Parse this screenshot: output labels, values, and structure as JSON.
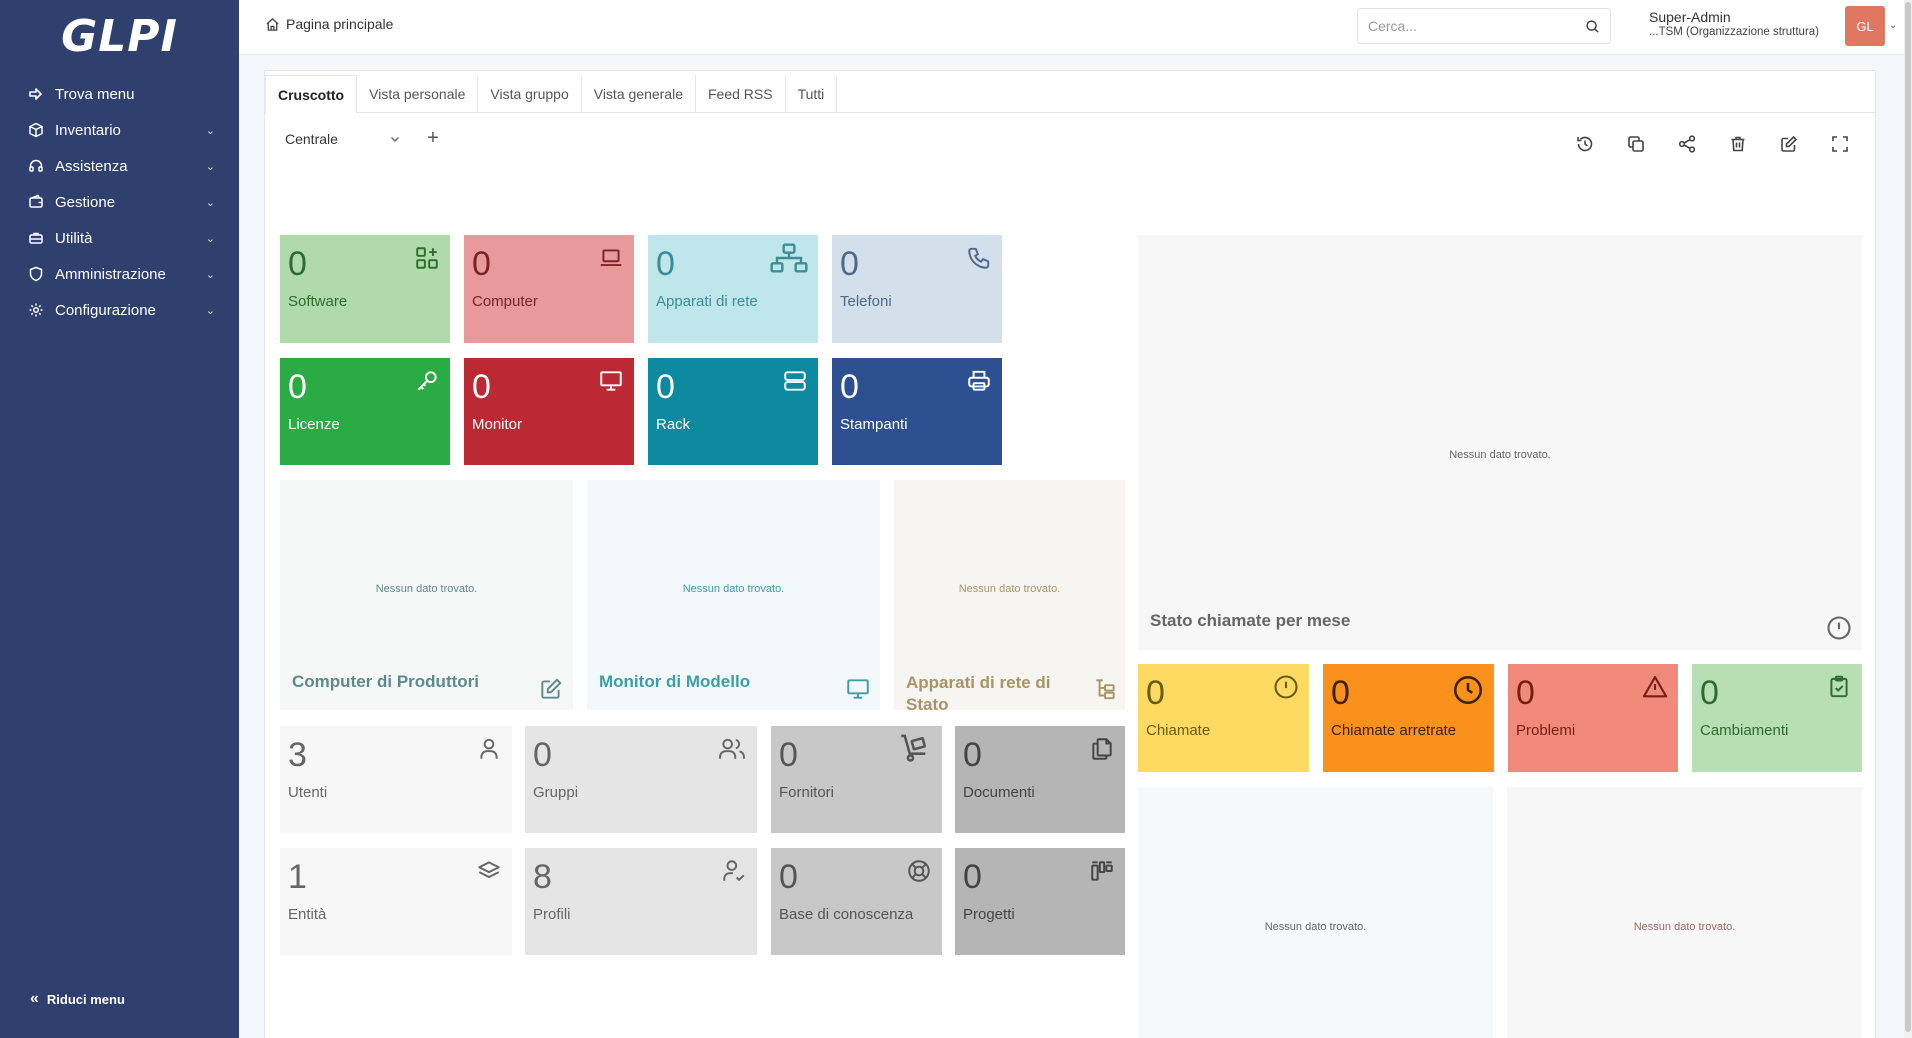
{
  "sidebar": {
    "logo": "GLPI",
    "items": [
      {
        "label": "Trova menu",
        "icon": "arrow-right-icon",
        "chevron": ""
      },
      {
        "label": "Inventario",
        "icon": "cube-icon",
        "chevron": "⌄"
      },
      {
        "label": "Assistenza",
        "icon": "headset-icon",
        "chevron": "⌄"
      },
      {
        "label": "Gestione",
        "icon": "wallet-icon",
        "chevron": "⌄"
      },
      {
        "label": "Utilità",
        "icon": "briefcase-icon",
        "chevron": "⌄"
      },
      {
        "label": "Amministrazione",
        "icon": "shield-icon",
        "chevron": "⌄"
      },
      {
        "label": "Configurazione",
        "icon": "gear-icon",
        "chevron": "⌄"
      }
    ],
    "collapse_label": "Riduci menu"
  },
  "header": {
    "breadcrumb": "Pagina principale",
    "search_placeholder": "Cerca...",
    "user_name": "Super-Admin",
    "user_entity": "...TSM (Organizzazione struttura)",
    "avatar_initials": "GL"
  },
  "tabs": [
    "Cruscotto",
    "Vista personale",
    "Vista gruppo",
    "Vista generale",
    "Feed RSS",
    "Tutti"
  ],
  "dashboard": {
    "selected": "Centrale",
    "add_symbol": "+",
    "tools": [
      "history-icon",
      "duplicate-icon",
      "share-icon",
      "trash-icon",
      "edit-icon",
      "fullscreen-icon"
    ]
  },
  "tiles": {
    "software": {
      "num": "0",
      "label": "Software",
      "bg": "#aedba8",
      "fg": "#2e6b30",
      "icon": "apps-add-icon"
    },
    "computer": {
      "num": "0",
      "label": "Computer",
      "bg": "#e89a9a",
      "fg": "#7a2424",
      "icon": "laptop-icon"
    },
    "network": {
      "num": "0",
      "label": "Apparati di rete",
      "bg": "#bfe6ea",
      "fg": "#3a8d99",
      "icon": "network-icon"
    },
    "phones": {
      "num": "0",
      "label": "Telefoni",
      "bg": "#d3e0ec",
      "fg": "#4d6a8a",
      "icon": "phone-icon"
    },
    "licenses": {
      "num": "0",
      "label": "Licenze",
      "bg": "#2bab44",
      "fg": "#ffffff",
      "icon": "key-icon"
    },
    "monitors": {
      "num": "0",
      "label": "Monitor",
      "bg": "#bb2a32",
      "fg": "#ffffff",
      "icon": "monitor-icon"
    },
    "racks": {
      "num": "0",
      "label": "Rack",
      "bg": "#0e8aa0",
      "fg": "#ffffff",
      "icon": "server-icon"
    },
    "printers": {
      "num": "0",
      "label": "Stampanti",
      "bg": "#2d5190",
      "fg": "#ffffff",
      "icon": "printer-icon"
    },
    "users": {
      "num": "3",
      "label": "Utenti",
      "bg": "#f7f7f7",
      "fg": "#666666",
      "icon": "user-icon"
    },
    "groups": {
      "num": "0",
      "label": "Gruppi",
      "bg": "#e5e5e5",
      "fg": "#666666",
      "icon": "users-icon"
    },
    "suppliers": {
      "num": "0",
      "label": "Fornitori",
      "bg": "#c8c8c8",
      "fg": "#555555",
      "icon": "dolly-icon"
    },
    "documents": {
      "num": "0",
      "label": "Documenti",
      "bg": "#b5b5b5",
      "fg": "#444444",
      "icon": "files-icon"
    },
    "entities": {
      "num": "1",
      "label": "Entità",
      "bg": "#f7f7f7",
      "fg": "#666666",
      "icon": "layers-icon"
    },
    "profiles": {
      "num": "8",
      "label": "Profili",
      "bg": "#e5e5e5",
      "fg": "#666666",
      "icon": "user-check-icon"
    },
    "kb": {
      "num": "0",
      "label": "Base di conoscenza",
      "bg": "#c8c8c8",
      "fg": "#555555",
      "icon": "lifebuoy-icon"
    },
    "projects": {
      "num": "0",
      "label": "Progetti",
      "bg": "#b5b5b5",
      "fg": "#444444",
      "icon": "columns-icon"
    },
    "tickets": {
      "num": "0",
      "label": "Chiamate",
      "bg": "#fddb63",
      "fg": "#6b5a10",
      "icon": "alert-circle-icon"
    },
    "late_tickets": {
      "num": "0",
      "label": "Chiamate arretrate",
      "bg": "#f9911c",
      "fg": "#3a2200",
      "icon": "clock-icon"
    },
    "problems": {
      "num": "0",
      "label": "Problemi",
      "bg": "#f08a7b",
      "fg": "#7a1d14",
      "icon": "alert-triangle-icon"
    },
    "changes": {
      "num": "0",
      "label": "Cambiamenti",
      "bg": "#b8deb3",
      "fg": "#2e6b30",
      "icon": "clipboard-check-icon"
    }
  },
  "panels": {
    "comp_manufacturer": {
      "title": "Computer di Produttori",
      "empty": "Nessun dato trovato.",
      "bg": "#f6f8f8",
      "fg": "#5d8a8c",
      "icon": "edit-icon"
    },
    "monitor_model": {
      "title": "Monitor di Modello",
      "empty": "Nessun dato trovato.",
      "bg": "#f3f9fa",
      "fg": "#3b9fa8",
      "icon": "monitor-icon"
    },
    "network_status": {
      "title": "Apparati di rete di Stato",
      "empty": "Nessun dato trovato.",
      "bg": "#f6f5f1",
      "fg": "#a99466",
      "icon": "tree-icon"
    },
    "tickets_month": {
      "title": "Stato chiamate per mese",
      "empty": "Nessun dato trovato.",
      "bg": "#f7f7f7",
      "fg": "#666666",
      "icon": "alert-circle-icon"
    },
    "bottom_left": {
      "empty": "Nessun dato trovato.",
      "bg": "#f7f8f9",
      "fg": "#666666"
    },
    "bottom_right": {
      "empty": "Nessun dato trovato.",
      "bg": "#f8f7f7",
      "fg": "#9a6b66"
    }
  }
}
